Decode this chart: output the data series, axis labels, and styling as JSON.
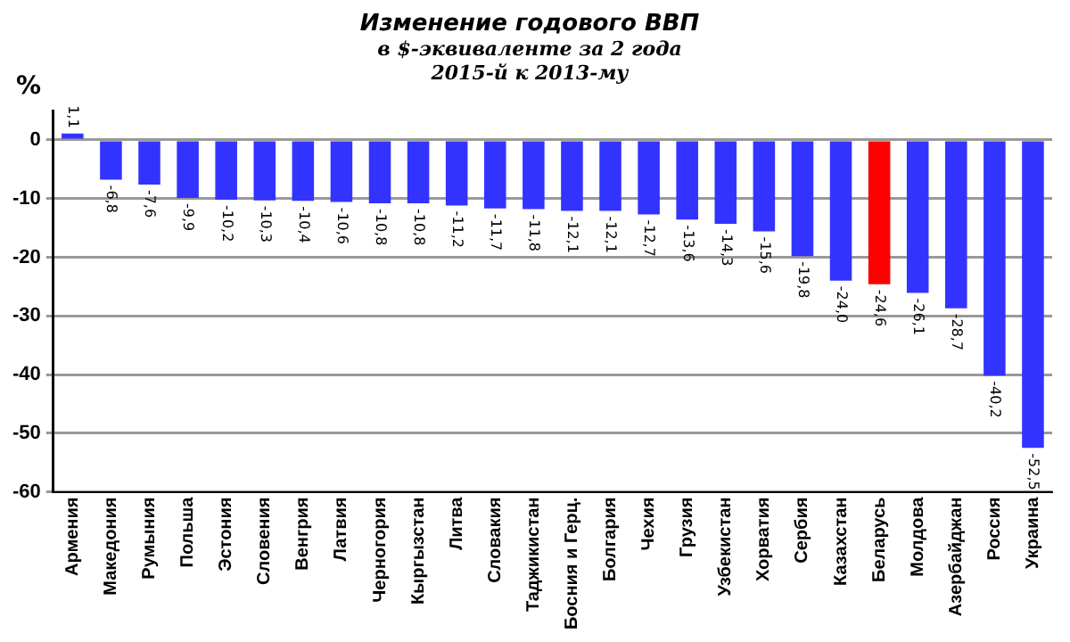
{
  "chart_data": {
    "type": "bar",
    "title": "Изменение годового ВВП",
    "subtitle": [
      "в $-эквиваленте за 2 года",
      "2015-й к 2013-му"
    ],
    "ylabel": "%",
    "categories": [
      "Армения",
      "Македония",
      "Румыния",
      "Польша",
      "Эстония",
      "Словения",
      "Венгрия",
      "Латвия",
      "Черногория",
      "Кыргызстан",
      "Литва",
      "Словакия",
      "Таджикистан",
      "Босния и Герц.",
      "Болгария",
      "Чехия",
      "Грузия",
      "Узбекистан",
      "Хорватия",
      "Сербия",
      "Казахстан",
      "Беларусь",
      "Молдова",
      "Азербайджан",
      "Россия",
      "Украина"
    ],
    "values": [
      1.1,
      -6.8,
      -7.6,
      -9.9,
      -10.2,
      -10.3,
      -10.4,
      -10.6,
      -10.8,
      -10.8,
      -11.2,
      -11.7,
      -11.8,
      -12.1,
      -12.1,
      -12.7,
      -13.6,
      -14.3,
      -15.6,
      -19.8,
      -24.0,
      -24.6,
      -26.1,
      -28.7,
      -40.2,
      -52.5
    ],
    "value_labels": [
      "1,1",
      "-6,8",
      "-7,6",
      "-9,9",
      "-10,2",
      "-10,3",
      "-10,4",
      "-10,6",
      "-10,8",
      "-10,8",
      "-11,2",
      "-11,7",
      "-11,8",
      "-12,1",
      "-12,1",
      "-12,7",
      "-13,6",
      "-14,3",
      "-15,6",
      "-19,8",
      "-24,0",
      "-24,6",
      "-26,1",
      "-28,7",
      "-40,2",
      "-52,5"
    ],
    "colors": [
      "#3333ff",
      "#3333ff",
      "#3333ff",
      "#3333ff",
      "#3333ff",
      "#3333ff",
      "#3333ff",
      "#3333ff",
      "#3333ff",
      "#3333ff",
      "#3333ff",
      "#3333ff",
      "#3333ff",
      "#3333ff",
      "#3333ff",
      "#3333ff",
      "#3333ff",
      "#3333ff",
      "#3333ff",
      "#3333ff",
      "#3333ff",
      "#ff0000",
      "#3333ff",
      "#3333ff",
      "#3333ff",
      "#3333ff"
    ],
    "ylim": [
      -60,
      5
    ],
    "yticks": [
      0,
      -10,
      -20,
      -30,
      -40,
      -50,
      -60
    ],
    "grid": "y"
  }
}
